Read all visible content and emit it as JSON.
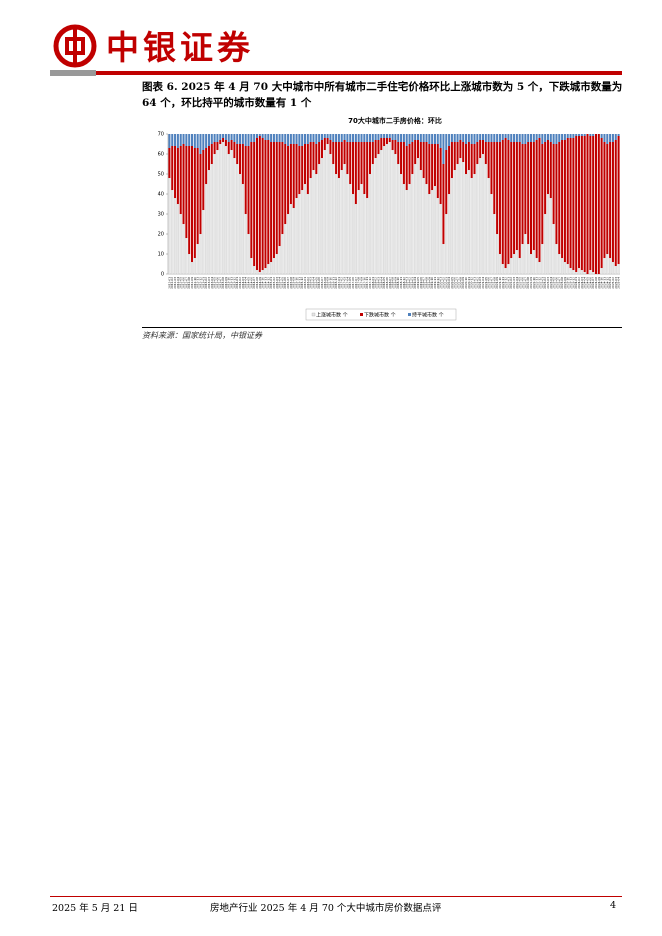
{
  "header": {
    "logo": "中银证券"
  },
  "figure": {
    "caption": "图表 6. 2025 年 4 月 70 大中城市中所有城市二手住宅价格环比上涨城市数为 5 个，下跌城市数量为 64 个，环比持平的城市数量有 1 个",
    "chart_data": {
      "type": "bar",
      "stacked": true,
      "title": "70大中城市二手房价格：环比",
      "categories": [
        "2012-01",
        "2012-02",
        "2012-03",
        "2012-04",
        "2012-05",
        "2012-06",
        "2012-07",
        "2012-08",
        "2012-09",
        "2012-10",
        "2012-11",
        "2012-12",
        "2013-01",
        "2013-02",
        "2013-03",
        "2013-04",
        "2013-05",
        "2013-06",
        "2013-07",
        "2013-08",
        "2013-09",
        "2013-10",
        "2013-11",
        "2013-12",
        "2014-01",
        "2014-02",
        "2014-03",
        "2014-04",
        "2014-05",
        "2014-06",
        "2014-07",
        "2014-08",
        "2014-09",
        "2014-10",
        "2014-11",
        "2014-12",
        "2015-01",
        "2015-02",
        "2015-03",
        "2015-04",
        "2015-05",
        "2015-06",
        "2015-07",
        "2015-08",
        "2015-09",
        "2015-10",
        "2015-11",
        "2015-12",
        "2016-01",
        "2016-02",
        "2016-03",
        "2016-04",
        "2016-05",
        "2016-06",
        "2016-07",
        "2016-08",
        "2016-09",
        "2016-10",
        "2016-11",
        "2016-12",
        "2017-01",
        "2017-02",
        "2017-03",
        "2017-04",
        "2017-05",
        "2017-06",
        "2017-07",
        "2017-08",
        "2017-09",
        "2017-10",
        "2017-11",
        "2017-12",
        "2018-01",
        "2018-02",
        "2018-03",
        "2018-04",
        "2018-05",
        "2018-06",
        "2018-07",
        "2018-08",
        "2018-09",
        "2018-10",
        "2018-11",
        "2018-12",
        "2019-01",
        "2019-02",
        "2019-03",
        "2019-04",
        "2019-05",
        "2019-06",
        "2019-07",
        "2019-08",
        "2019-09",
        "2019-10",
        "2019-11",
        "2019-12",
        "2020-01",
        "2020-02",
        "2020-03",
        "2020-04",
        "2020-05",
        "2020-06",
        "2020-07",
        "2020-08",
        "2020-09",
        "2020-10",
        "2020-11",
        "2020-12",
        "2021-01",
        "2021-02",
        "2021-03",
        "2021-04",
        "2021-05",
        "2021-06",
        "2021-07",
        "2021-08",
        "2021-09",
        "2021-10",
        "2021-11",
        "2021-12",
        "2022-01",
        "2022-02",
        "2022-03",
        "2022-04",
        "2022-05",
        "2022-06",
        "2022-07",
        "2022-08",
        "2022-09",
        "2022-10",
        "2022-11",
        "2022-12",
        "2023-01",
        "2023-02",
        "2023-03",
        "2023-04",
        "2023-05",
        "2023-06",
        "2023-07",
        "2023-08",
        "2023-09",
        "2023-10",
        "2023-11",
        "2023-12",
        "2024-01",
        "2024-02",
        "2024-03",
        "2024-04",
        "2024-05",
        "2024-06",
        "2024-07",
        "2024-08",
        "2024-09",
        "2024-10",
        "2024-11",
        "2024-12",
        "2025-01",
        "2025-02",
        "2025-03",
        "2025-04"
      ],
      "series": [
        {
          "name": "上涨城市数 个",
          "color": "#e6e6e6",
          "values": [
            48,
            42,
            38,
            35,
            30,
            25,
            18,
            10,
            6,
            8,
            15,
            20,
            32,
            45,
            52,
            55,
            60,
            62,
            65,
            66,
            64,
            60,
            62,
            58,
            55,
            50,
            45,
            30,
            20,
            8,
            4,
            2,
            1,
            2,
            3,
            5,
            6,
            8,
            10,
            14,
            20,
            25,
            30,
            35,
            33,
            38,
            40,
            42,
            45,
            40,
            48,
            52,
            50,
            55,
            58,
            62,
            65,
            60,
            55,
            50,
            48,
            52,
            55,
            50,
            45,
            40,
            35,
            42,
            45,
            40,
            38,
            50,
            55,
            58,
            60,
            62,
            64,
            65,
            66,
            62,
            60,
            55,
            50,
            45,
            42,
            45,
            50,
            55,
            58,
            52,
            48,
            45,
            40,
            42,
            44,
            38,
            35,
            15,
            30,
            40,
            48,
            52,
            55,
            58,
            56,
            50,
            52,
            48,
            50,
            55,
            58,
            60,
            55,
            48,
            40,
            30,
            20,
            10,
            5,
            3,
            5,
            8,
            10,
            12,
            8,
            15,
            20,
            15,
            10,
            12,
            8,
            6,
            15,
            30,
            40,
            38,
            25,
            15,
            10,
            8,
            6,
            5,
            3,
            2,
            1,
            3,
            2,
            1,
            0,
            2,
            1,
            0,
            0,
            3,
            8,
            10,
            8,
            6,
            4,
            5
          ]
        },
        {
          "name": "下跌城市数 个",
          "color": "#c00000",
          "values": [
            15,
            22,
            26,
            28,
            34,
            40,
            46,
            54,
            58,
            55,
            48,
            40,
            30,
            18,
            12,
            10,
            6,
            4,
            2,
            2,
            3,
            6,
            5,
            8,
            10,
            15,
            20,
            34,
            44,
            58,
            62,
            66,
            68,
            66,
            64,
            62,
            60,
            58,
            56,
            52,
            46,
            40,
            34,
            30,
            32,
            27,
            24,
            22,
            20,
            25,
            18,
            14,
            15,
            11,
            9,
            6,
            3,
            7,
            11,
            16,
            18,
            14,
            12,
            16,
            21,
            26,
            31,
            24,
            21,
            26,
            28,
            16,
            11,
            9,
            7,
            6,
            4,
            3,
            2,
            5,
            7,
            11,
            16,
            21,
            22,
            20,
            16,
            12,
            9,
            14,
            18,
            21,
            25,
            23,
            21,
            27,
            28,
            40,
            32,
            24,
            18,
            14,
            11,
            9,
            10,
            15,
            14,
            17,
            15,
            11,
            9,
            7,
            11,
            18,
            26,
            36,
            46,
            56,
            62,
            65,
            62,
            58,
            56,
            54,
            58,
            50,
            45,
            51,
            56,
            54,
            59,
            62,
            50,
            36,
            27,
            28,
            40,
            50,
            56,
            59,
            61,
            63,
            65,
            66,
            68,
            66,
            67,
            68,
            70,
            67,
            68,
            70,
            70,
            65,
            58,
            55,
            58,
            60,
            63,
            64
          ]
        },
        {
          "name": "持平城市数 个",
          "color": "#4f81bd",
          "values": [
            7,
            6,
            6,
            7,
            6,
            5,
            6,
            6,
            6,
            7,
            7,
            10,
            8,
            7,
            6,
            5,
            4,
            4,
            3,
            2,
            3,
            4,
            3,
            4,
            5,
            5,
            5,
            6,
            6,
            4,
            4,
            2,
            1,
            2,
            3,
            3,
            4,
            4,
            4,
            4,
            4,
            5,
            6,
            5,
            5,
            5,
            6,
            6,
            5,
            5,
            4,
            4,
            5,
            4,
            3,
            2,
            2,
            3,
            4,
            4,
            4,
            4,
            3,
            4,
            4,
            4,
            4,
            4,
            4,
            4,
            4,
            4,
            4,
            3,
            3,
            2,
            2,
            2,
            2,
            3,
            3,
            4,
            4,
            4,
            6,
            5,
            4,
            3,
            3,
            4,
            4,
            4,
            5,
            5,
            5,
            5,
            7,
            15,
            8,
            6,
            4,
            4,
            4,
            3,
            4,
            5,
            4,
            5,
            5,
            4,
            3,
            3,
            4,
            4,
            4,
            4,
            4,
            4,
            3,
            2,
            3,
            4,
            4,
            4,
            4,
            5,
            5,
            4,
            4,
            4,
            3,
            2,
            5,
            4,
            3,
            4,
            5,
            5,
            4,
            3,
            3,
            2,
            2,
            2,
            1,
            1,
            1,
            1,
            0,
            1,
            1,
            0,
            0,
            2,
            4,
            5,
            4,
            4,
            3,
            1
          ]
        }
      ],
      "ylim": [
        0,
        70
      ],
      "yticks": [
        0,
        10,
        20,
        30,
        40,
        50,
        60,
        70
      ],
      "legend": "bottom"
    },
    "source": "资料来源：国家统计局，中银证券"
  },
  "footer": {
    "date": "2025 年 5 月 21 日",
    "title": "房地产行业 2025 年 4 月 70 个大中城市房价数据点评",
    "page": "4"
  }
}
